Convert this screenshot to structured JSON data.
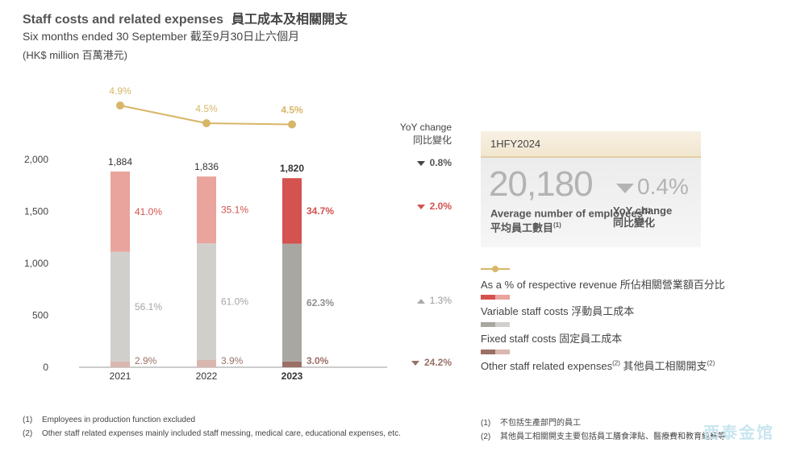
{
  "header": {
    "title_en": "Staff costs and related expenses",
    "title_zh": "員工成本及相關開支",
    "subtitle": "Six months ended 30 September 截至9月30日止六個月",
    "unit": "(HK$ million 百萬港元)"
  },
  "chart_data": {
    "type": "bar",
    "stacked": true,
    "categories": [
      "2021",
      "2022",
      "2023"
    ],
    "ylim": [
      0,
      2000
    ],
    "yticks": [
      "2,000",
      "1,500",
      "1,000",
      "500",
      "0"
    ],
    "totals": [
      "1,884",
      "1,836",
      "1,820"
    ],
    "series": [
      {
        "name": "Other staff related expenses",
        "values": [
          55,
          72,
          55
        ],
        "labels": [
          "2.9%",
          "3.9%",
          "3.0%"
        ]
      },
      {
        "name": "Fixed staff costs",
        "values": [
          1056,
          1120,
          1134
        ],
        "labels": [
          "56.1%",
          "61.0%",
          "62.3%"
        ]
      },
      {
        "name": "Variable staff costs",
        "values": [
          773,
          644,
          631
        ],
        "labels": [
          "41.0%",
          "35.1%",
          "34.7%"
        ]
      }
    ],
    "line_series": {
      "name": "As a % of respective revenue",
      "values": [
        4.9,
        4.5,
        4.5
      ],
      "labels": [
        "4.9%",
        "4.5%",
        "4.5%"
      ]
    }
  },
  "yoy": {
    "header_en": "YoY change",
    "header_zh": "同比變化",
    "values": [
      "0.8%",
      "2.0%",
      "1.3%",
      "24.2%"
    ]
  },
  "stat_box": {
    "title": "1HFY2024",
    "employees": "20,180",
    "employees_yoy": "0.4%",
    "label1_en": "Average number of employees",
    "label1_sup": "(1)",
    "label1_zh": "平均員工數目",
    "label2_en": "YoY change",
    "label2_zh": "同比變化"
  },
  "legend": {
    "line": "As a % of respective revenue 所佔相關營業額百分比",
    "variable": "Variable staff costs 浮動員工成本",
    "fixed": "Fixed staff costs 固定員工成本",
    "other_en": "Other staff related expenses",
    "other_sup": "(2)",
    "other_zh": "其他員工相關開支",
    "other_sup2": "(2)"
  },
  "footnotes": {
    "n1": "(1)",
    "n2": "(2)",
    "en1": "Employees in production function excluded",
    "en2": "Other staff related expenses mainly included staff messing, medical care, educational expenses, etc.",
    "zh1": "不包括生產部門的員工",
    "zh2": "其他員工相關開支主要包括員工膳食津貼、醫療費和教育經費等"
  },
  "watermark": "西泰金馆",
  "colors": {
    "other_pale": "#d9b7b0",
    "other_dark": "#9a7066",
    "fixed_pale": "#d1cfcc",
    "fixed_dark": "#a9a7a2",
    "variable_pale": "#e8a49d",
    "variable_dark": "#d4524f",
    "line": "#d7b668"
  }
}
